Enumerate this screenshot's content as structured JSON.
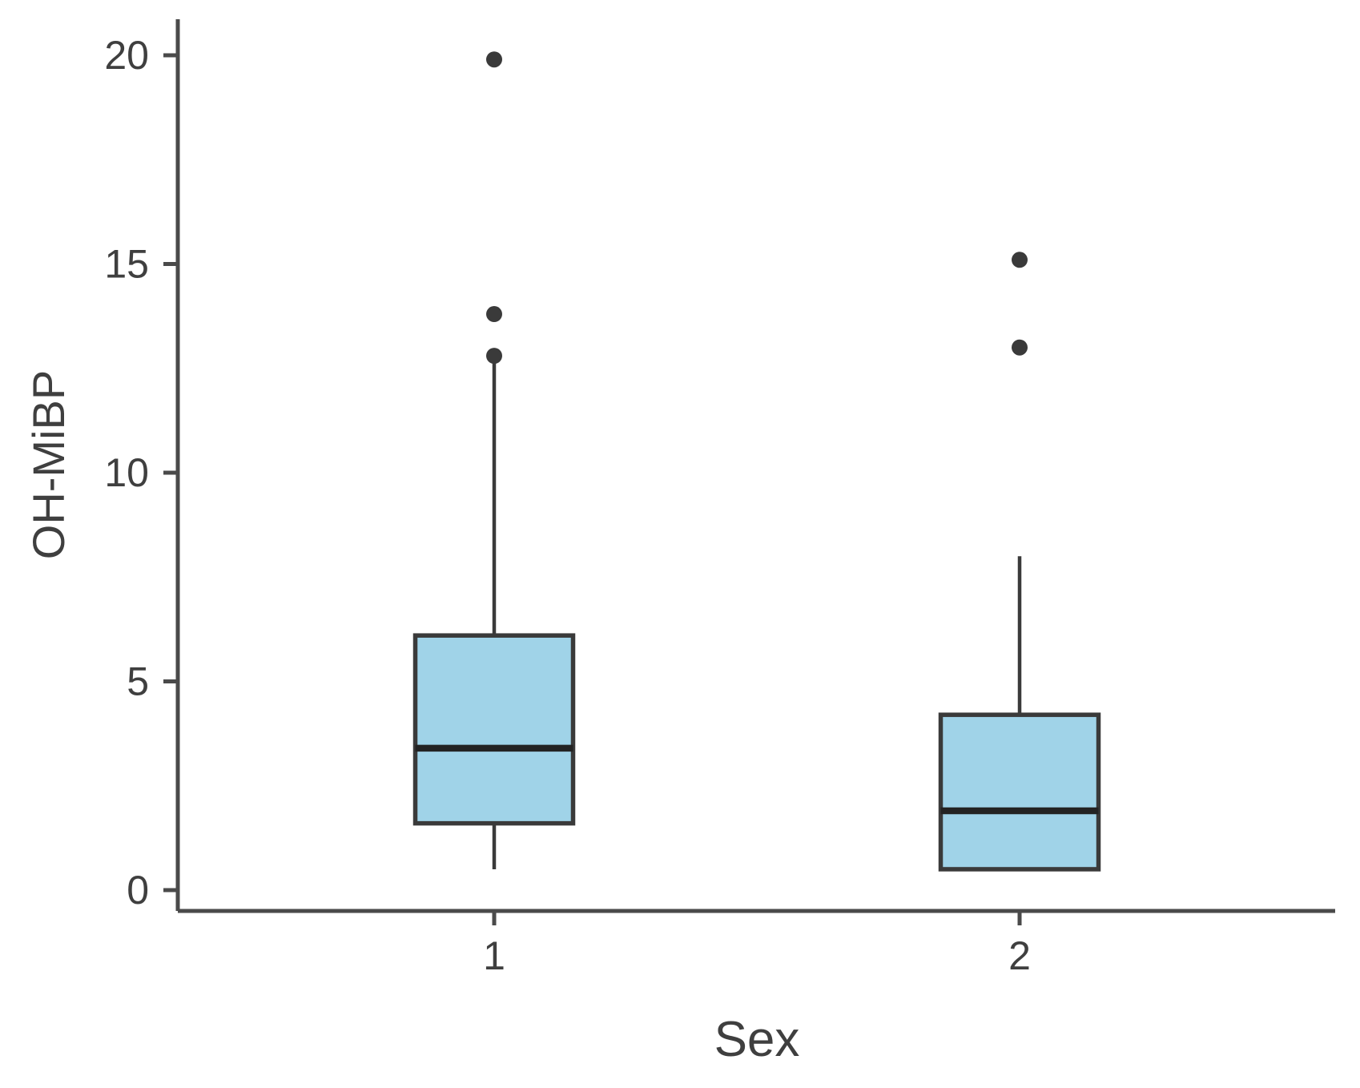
{
  "figure": {
    "background": "#ffffff"
  },
  "chart_data": {
    "type": "boxplot",
    "title": "",
    "xlabel": "Sex",
    "ylabel": "OH-MiBP",
    "categories": [
      "1",
      "2"
    ],
    "y_ticks": [
      0,
      5,
      10,
      15,
      20
    ],
    "ylim": [
      -0.5,
      21
    ],
    "grid": false,
    "legend_position": "none",
    "series": [
      {
        "category": "1",
        "whisker_low": 0.5,
        "q1": 1.6,
        "median": 3.4,
        "q3": 6.1,
        "whisker_high": 12.7,
        "outliers": [
          12.8,
          13.8,
          19.9
        ]
      },
      {
        "category": "2",
        "whisker_low": 0.5,
        "q1": 0.5,
        "median": 1.9,
        "q3": 4.2,
        "whisker_high": 8.0,
        "outliers": [
          13.0,
          15.1
        ]
      }
    ],
    "colors": {
      "box_fill": "#a0d3e8",
      "box_stroke": "#3a3a3a",
      "median": "#232323",
      "whisker": "#3a3a3a",
      "outlier": "#3a3a3a",
      "axis": "#4a4a4a",
      "text": "#3f3f3f"
    }
  }
}
